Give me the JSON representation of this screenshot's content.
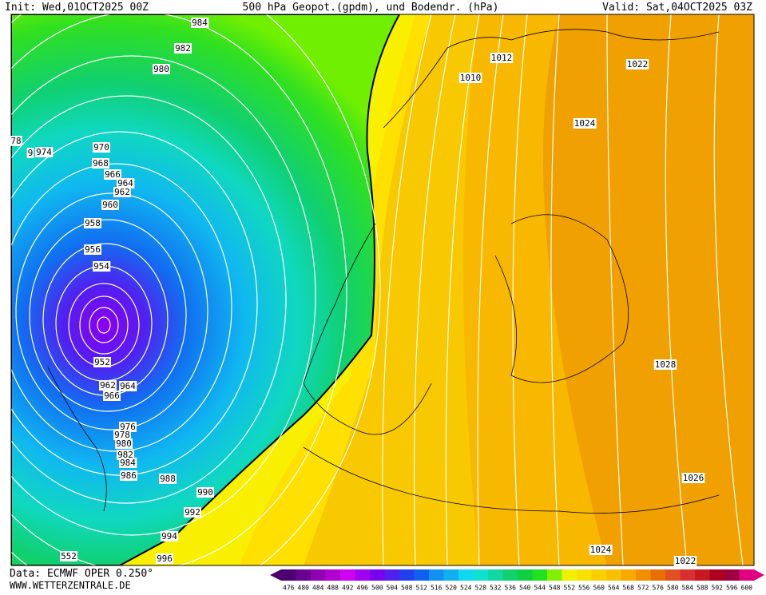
{
  "header": {
    "init": "Init: Wed,01OCT2025 00Z",
    "title": "500 hPa Geopot.(gpdm), und Bodendr. (hPa)",
    "valid": "Valid: Sat,04OCT2025 03Z"
  },
  "isobar_labels": [
    "984",
    "982",
    "980",
    "78",
    "9",
    "974",
    "970",
    "968",
    "966",
    "964",
    "962",
    "960",
    "958",
    "956",
    "954",
    "952",
    "962",
    "964",
    "966",
    "976",
    "978",
    "980",
    "982",
    "984",
    "986",
    "988",
    "990",
    "992",
    "994",
    "996",
    "552",
    "1012",
    "1010",
    "1022",
    "1024",
    "1028",
    "1026",
    "1024",
    "1022"
  ],
  "footer": {
    "source": "Data: ECMWF OPER 0.250°",
    "site": "WWW.WETTERZENTRALE.DE"
  },
  "colorbar": {
    "labels": [
      "476",
      "480",
      "484",
      "488",
      "492",
      "496",
      "500",
      "504",
      "508",
      "512",
      "516",
      "520",
      "524",
      "528",
      "532",
      "536",
      "540",
      "544",
      "548",
      "552",
      "556",
      "560",
      "564",
      "568",
      "572",
      "576",
      "580",
      "584",
      "588",
      "592",
      "596",
      "600"
    ],
    "colors": [
      "#4b0070",
      "#6a0090",
      "#9000b0",
      "#b000d0",
      "#d000f0",
      "#a000f0",
      "#7a00f0",
      "#5020f0",
      "#2040f0",
      "#1060f0",
      "#1090f0",
      "#10b0f0",
      "#10d8f0",
      "#10e0d0",
      "#10d8a0",
      "#10d070",
      "#10d040",
      "#20e020",
      "#80f000",
      "#f0f000",
      "#f8e000",
      "#f8d000",
      "#f8c000",
      "#f8a800",
      "#f09000",
      "#e87000",
      "#e05020",
      "#d83030",
      "#c81820",
      "#b00020",
      "#a00040",
      "#e00080"
    ]
  }
}
